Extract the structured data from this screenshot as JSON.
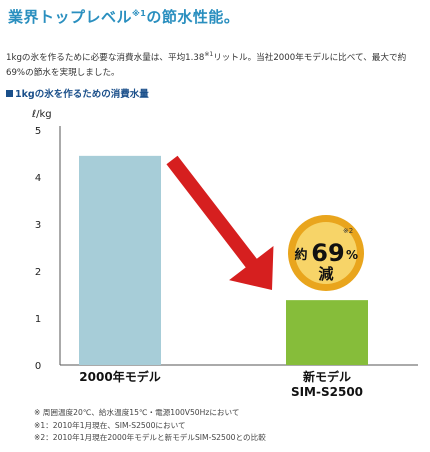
{
  "heading": {
    "main": "業界トップレベル",
    "sup": "※1",
    "rest": "の節水性能。"
  },
  "description": {
    "pre": "1kgの氷を作るために必要な消費水量は、平均1.38",
    "sup": "※1",
    "post": "リットル。当社2000年モデルに比べて、最大で約69%の節水を実現しました。"
  },
  "chart_title": "1kgの氷を作るための消費水量",
  "chart_data": {
    "type": "bar",
    "title": "1kgの氷を作るための消費水量",
    "ylabel": "ℓ/kg",
    "ylim": [
      0,
      5
    ],
    "yticks": [
      "0",
      "1",
      "2",
      "3",
      "4",
      "5"
    ],
    "categories": [
      {
        "line1": "2000年モデル",
        "line2": ""
      },
      {
        "line1": "新モデル",
        "line2": "SIM-S2500"
      }
    ],
    "values": [
      4.45,
      1.38
    ],
    "colors": [
      "#a7cdd8",
      "#86bd3a"
    ],
    "grid": false,
    "annotation": {
      "prefix": "約",
      "value": "69",
      "unit": "%",
      "suffix": "減",
      "note": "※2"
    }
  },
  "colors": {
    "arrow": "#d61f1f",
    "badge_outer": "#e9a51d",
    "badge_inner": "#f7d468"
  },
  "notes": [
    "※ 周囲温度20℃、給水温度15℃・電源100V50Hzにおいて",
    "※1：2010年1月現在、SIM-S2500において",
    "※2：2010年1月現在2000年モデルと新モデルSIM-S2500との比較"
  ]
}
